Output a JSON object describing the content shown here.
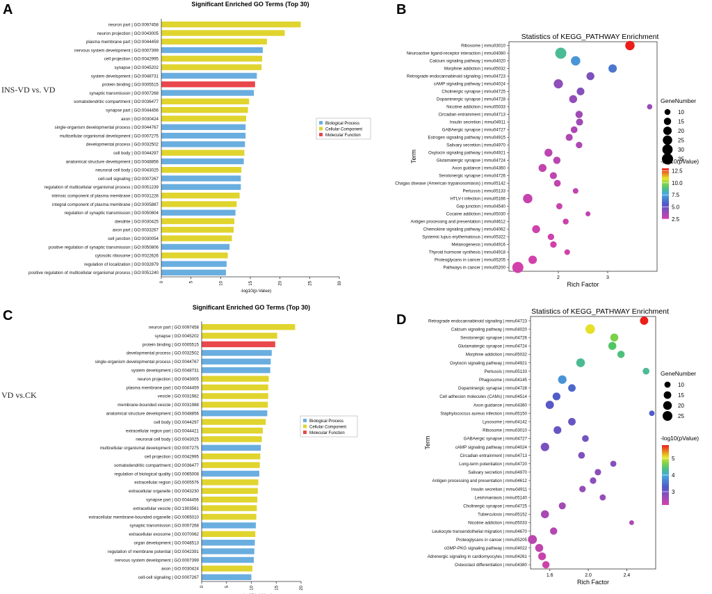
{
  "panels": {
    "A": {
      "letter": "A",
      "side_label": "INS-VD vs. VD"
    },
    "B": {
      "letter": "B"
    },
    "C": {
      "letter": "C",
      "side_label": "VD vs.CK"
    },
    "D": {
      "letter": "D"
    }
  },
  "colors": {
    "bp": "#6aaee0",
    "cc": "#e0d42e",
    "mf": "#e8474c"
  },
  "chart_data": [
    {
      "id": "A",
      "type": "bar",
      "orientation": "horizontal",
      "title": "Significant Enriched GO Terms (Top 30)",
      "xlabel": "-log10(p-Value)",
      "xlim": [
        0,
        30
      ],
      "xticks": [
        0,
        5,
        10,
        15,
        20,
        25,
        30
      ],
      "legend": {
        "position": "right",
        "entries": [
          {
            "label": "Biological Process",
            "key": "bp"
          },
          {
            "label": "Cellular Component",
            "key": "cc"
          },
          {
            "label": "Molecular Function",
            "key": "mf"
          }
        ]
      },
      "bars": [
        {
          "label": "neuron part | GO:0097458",
          "value": 23.5,
          "cat": "cc"
        },
        {
          "label": "neuron projection | GO:0043005",
          "value": 20.8,
          "cat": "cc"
        },
        {
          "label": "plasma membrane part | GO:0044459",
          "value": 17.8,
          "cat": "cc"
        },
        {
          "label": "nervous system development | GO:0007399",
          "value": 17.1,
          "cat": "bp"
        },
        {
          "label": "cell projection | GO:0042995",
          "value": 17.0,
          "cat": "cc"
        },
        {
          "label": "synapse | GO:0045202",
          "value": 16.9,
          "cat": "cc"
        },
        {
          "label": "system development | GO:0048731",
          "value": 16.1,
          "cat": "bp"
        },
        {
          "label": "protein binding | GO:0005515",
          "value": 15.8,
          "cat": "mf"
        },
        {
          "label": "synaptic transmission | GO:0007268",
          "value": 15.6,
          "cat": "bp"
        },
        {
          "label": "somatodendritic compartment | GO:0036477",
          "value": 14.8,
          "cat": "cc"
        },
        {
          "label": "synapse part | GO:0044456",
          "value": 14.6,
          "cat": "cc"
        },
        {
          "label": "axon | GO:0030424",
          "value": 14.3,
          "cat": "cc"
        },
        {
          "label": "single-organism developmental process | GO:0044767",
          "value": 14.2,
          "cat": "bp"
        },
        {
          "label": "multicellular organismal development | GO:0007275",
          "value": 14.2,
          "cat": "bp"
        },
        {
          "label": "developmental process | GO:0032502",
          "value": 14.1,
          "cat": "bp"
        },
        {
          "label": "cell body | GO:0044297",
          "value": 14.0,
          "cat": "cc"
        },
        {
          "label": "anatomical structure development | GO:0048856",
          "value": 13.9,
          "cat": "bp"
        },
        {
          "label": "neuronal cell body | GO:0043025",
          "value": 13.5,
          "cat": "cc"
        },
        {
          "label": "cell-cell signaling | GO:0007267",
          "value": 13.4,
          "cat": "bp"
        },
        {
          "label": "regulation of multicellular organismal process | GO:0051239",
          "value": 13.4,
          "cat": "bp"
        },
        {
          "label": "intrinsic component of plasma membrane | GO:0031226",
          "value": 13.2,
          "cat": "cc"
        },
        {
          "label": "integral component of plasma membrane | GO:0005887",
          "value": 12.7,
          "cat": "cc"
        },
        {
          "label": "regulation of synaptic transmission | GO:0050804",
          "value": 12.5,
          "cat": "bp"
        },
        {
          "label": "dendrite | GO:0030425",
          "value": 12.3,
          "cat": "cc"
        },
        {
          "label": "axon part | GO:0033267",
          "value": 12.2,
          "cat": "cc"
        },
        {
          "label": "cell junction | GO:0030054",
          "value": 11.9,
          "cat": "cc"
        },
        {
          "label": "positive regulation of synaptic transmission | GO:0050806",
          "value": 11.5,
          "cat": "bp"
        },
        {
          "label": "cytosolic ribosome | GO:0022626",
          "value": 11.2,
          "cat": "cc"
        },
        {
          "label": "regulation of localization | GO:0032879",
          "value": 11.0,
          "cat": "bp"
        },
        {
          "label": "positive regulation of multicellular organismal process | GO:0051240",
          "value": 10.9,
          "cat": "bp"
        }
      ]
    },
    {
      "id": "B",
      "type": "scatter",
      "title": "Statistics of KEGG_PATHWAY Enrichment",
      "xlabel": "Rich Factor",
      "ylabel": "Term",
      "xlim": [
        1.0,
        4.0
      ],
      "xticks": [
        2,
        3
      ],
      "size_legend": {
        "title": "GeneNumber",
        "values": [
          10,
          15,
          20,
          25,
          30,
          35
        ]
      },
      "color_legend": {
        "title": "-log10(pValue)",
        "min": 2.5,
        "max": 13,
        "ticks": [
          "12.5",
          "10.0",
          "7.5",
          "5.0",
          "2.5"
        ],
        "tick_values": [
          12.5,
          10,
          7.5,
          5,
          2.5
        ]
      },
      "points": [
        {
          "term": "Ribosome | mmu03010",
          "x": 3.45,
          "genes": 25,
          "p": 13.0
        },
        {
          "term": "Neuroactive ligand-receptor interaction | mmu04080",
          "x": 2.05,
          "genes": 35,
          "p": 8.6
        },
        {
          "term": "Calcium signaling pathway | mmu04020",
          "x": 2.35,
          "genes": 25,
          "p": 7.2
        },
        {
          "term": "Morphine addiction | mmu05032",
          "x": 3.1,
          "genes": 20,
          "p": 6.4
        },
        {
          "term": "Retrograde endocannabinoid signaling | mmu04723",
          "x": 2.65,
          "genes": 18,
          "p": 4.6
        },
        {
          "term": "cAMP signaling pathway | mmu04024",
          "x": 2.0,
          "genes": 24,
          "p": 4.1
        },
        {
          "term": "Cholinergic synapse | mmu04725",
          "x": 2.45,
          "genes": 17,
          "p": 4.4
        },
        {
          "term": "Dopaminergic synapse | mmu04728",
          "x": 2.3,
          "genes": 18,
          "p": 4.0
        },
        {
          "term": "Nicotine addiction | mmu05033",
          "x": 3.85,
          "genes": 8,
          "p": 3.9
        },
        {
          "term": "Circadian entrainment | mmu04713",
          "x": 2.42,
          "genes": 15,
          "p": 3.7
        },
        {
          "term": "Insulin secretion | mmu04911",
          "x": 2.43,
          "genes": 14,
          "p": 3.7
        },
        {
          "term": "GABAergic synapse | mmu04727",
          "x": 2.32,
          "genes": 13,
          "p": 3.4
        },
        {
          "term": "Estrogen signaling pathway | mmu04915",
          "x": 2.22,
          "genes": 14,
          "p": 3.3
        },
        {
          "term": "Salivary secretion | mmu04970",
          "x": 2.42,
          "genes": 12,
          "p": 3.4
        },
        {
          "term": "Oxytocin signaling pathway | mmu04921",
          "x": 1.8,
          "genes": 18,
          "p": 3.0
        },
        {
          "term": "Glutamatergic synapse | mmu04724",
          "x": 1.97,
          "genes": 15,
          "p": 3.1
        },
        {
          "term": "Axon guidance | mmu04360",
          "x": 1.68,
          "genes": 18,
          "p": 2.9
        },
        {
          "term": "Serotonergic synapse | mmu04726",
          "x": 1.9,
          "genes": 14,
          "p": 2.9
        },
        {
          "term": "Chagas disease (American trypanosomiasis) | mmu05142",
          "x": 1.98,
          "genes": 13,
          "p": 2.9
        },
        {
          "term": "Pertussis | mmu05133",
          "x": 2.35,
          "genes": 9,
          "p": 2.9
        },
        {
          "term": "HTLV-I infection | mmu05166",
          "x": 1.38,
          "genes": 25,
          "p": 2.8
        },
        {
          "term": "Gap junction | mmu04540",
          "x": 2.02,
          "genes": 11,
          "p": 2.8
        },
        {
          "term": "Cocaine addiction | mmu05030",
          "x": 2.6,
          "genes": 7,
          "p": 2.9
        },
        {
          "term": "Antigen processing and presentation | mmu04612",
          "x": 2.15,
          "genes": 10,
          "p": 2.7
        },
        {
          "term": "Chemokine signaling pathway | mmu04062",
          "x": 1.55,
          "genes": 18,
          "p": 2.6
        },
        {
          "term": "Systemic lupus erythematosus | mmu05322",
          "x": 1.85,
          "genes": 12,
          "p": 2.6
        },
        {
          "term": "Melanogenesis | mmu04916",
          "x": 1.9,
          "genes": 12,
          "p": 2.5
        },
        {
          "term": "Thyroid hormone synthesis | mmu04918",
          "x": 2.18,
          "genes": 9,
          "p": 2.5
        },
        {
          "term": "Proteoglycans in cancer | mmu05205",
          "x": 1.48,
          "genes": 20,
          "p": 2.5
        },
        {
          "term": "Pathways in cancer | mmu05200",
          "x": 1.18,
          "genes": 35,
          "p": 2.4
        }
      ]
    },
    {
      "id": "C",
      "type": "bar",
      "orientation": "horizontal",
      "title": "Significant Enriched GO Terms (Top 30)",
      "xlabel": "-log10(p-Value)",
      "xlim": [
        0,
        20
      ],
      "xticks": [
        0,
        5,
        10,
        15,
        20
      ],
      "legend": {
        "position": "right",
        "entries": [
          {
            "label": "Biological Process",
            "key": "bp"
          },
          {
            "label": "Cellular Component",
            "key": "cc"
          },
          {
            "label": "Molecular Function",
            "key": "mf"
          }
        ]
      },
      "bars": [
        {
          "label": "neuron part | GO:0097458",
          "value": 18.8,
          "cat": "cc"
        },
        {
          "label": "synapse | GO:0045202",
          "value": 15.2,
          "cat": "cc"
        },
        {
          "label": "protein binding | GO:0005515",
          "value": 14.8,
          "cat": "mf"
        },
        {
          "label": "developmental process | GO:0032502",
          "value": 14.1,
          "cat": "bp"
        },
        {
          "label": "single-organism developmental process | GO:0044767",
          "value": 13.9,
          "cat": "bp"
        },
        {
          "label": "system development | GO:0048731",
          "value": 13.8,
          "cat": "bp"
        },
        {
          "label": "neuron projection | GO:0043005",
          "value": 13.5,
          "cat": "cc"
        },
        {
          "label": "plasma membrane part | GO:0044459",
          "value": 13.4,
          "cat": "cc"
        },
        {
          "label": "vesicle | GO:0031982",
          "value": 13.4,
          "cat": "cc"
        },
        {
          "label": "membrane-bounded vesicle | GO:0031988",
          "value": 13.3,
          "cat": "cc"
        },
        {
          "label": "anatomical structure development | GO:0048856",
          "value": 13.2,
          "cat": "bp"
        },
        {
          "label": "cell body | GO:0044297",
          "value": 12.9,
          "cat": "cc"
        },
        {
          "label": "extracellular region part | GO:0044421",
          "value": 12.3,
          "cat": "cc"
        },
        {
          "label": "neuronal cell body | GO:0043025",
          "value": 12.1,
          "cat": "cc"
        },
        {
          "label": "multicellular organismal development | GO:0007275",
          "value": 11.9,
          "cat": "bp"
        },
        {
          "label": "cell projection | GO:0042995",
          "value": 11.8,
          "cat": "cc"
        },
        {
          "label": "somatodendritic compartment | GO:0036477",
          "value": 11.7,
          "cat": "cc"
        },
        {
          "label": "regulation of biological quality | GO:0065008",
          "value": 11.6,
          "cat": "bp"
        },
        {
          "label": "extracellular region | GO:0005576",
          "value": 11.4,
          "cat": "cc"
        },
        {
          "label": "extracellular organelle | GO:0043230",
          "value": 11.3,
          "cat": "cc"
        },
        {
          "label": "synapse part | GO:0044456",
          "value": 11.2,
          "cat": "cc"
        },
        {
          "label": "extracellular vesicle | GO:1903561",
          "value": 11.1,
          "cat": "cc"
        },
        {
          "label": "extracellular membrane-bounded organelle | GO:0065010",
          "value": 11.0,
          "cat": "cc"
        },
        {
          "label": "synaptic transmission | GO:0007268",
          "value": 10.9,
          "cat": "bp"
        },
        {
          "label": "extracellular exosome | GO:0070062",
          "value": 10.8,
          "cat": "cc"
        },
        {
          "label": "organ development | GO:0048513",
          "value": 10.7,
          "cat": "bp"
        },
        {
          "label": "regulation of membrane potential | GO:0042391",
          "value": 10.6,
          "cat": "bp"
        },
        {
          "label": "nervous system development | GO:0007399",
          "value": 10.5,
          "cat": "bp"
        },
        {
          "label": "axon | GO:0030424",
          "value": 10.2,
          "cat": "cc"
        },
        {
          "label": "cell-cell signaling | GO:0007267",
          "value": 10.0,
          "cat": "bp"
        }
      ]
    },
    {
      "id": "D",
      "type": "scatter",
      "title": "Statistics of KEGG_PATHWAY Enrichment",
      "xlabel": "Rich Factor",
      "ylabel": "Term",
      "xlim": [
        1.4,
        2.7
      ],
      "xticks": [
        1.6,
        2.0,
        2.4
      ],
      "size_legend": {
        "title": "GeneNumber",
        "values": [
          10,
          15,
          20,
          25
        ]
      },
      "color_legend": {
        "title": "-log10(pValue)",
        "min": 2.2,
        "max": 5.8,
        "ticks": [
          "5",
          "4",
          "3"
        ],
        "tick_values": [
          5,
          4,
          3
        ]
      },
      "points": [
        {
          "term": "Retrograde endocannabinoid signaling | mmu04723",
          "x": 2.58,
          "genes": 18,
          "p": 5.8
        },
        {
          "term": "Calcium signaling pathway | mmu04020",
          "x": 2.02,
          "genes": 24,
          "p": 5.1
        },
        {
          "term": "Serotonergic synapse | mmu04726",
          "x": 2.27,
          "genes": 17,
          "p": 4.7
        },
        {
          "term": "Glutamatergic synapse | mmu04724",
          "x": 2.25,
          "genes": 17,
          "p": 4.5
        },
        {
          "term": "Morphine addiction | mmu05032",
          "x": 2.34,
          "genes": 14,
          "p": 4.4
        },
        {
          "term": "Oxytocin signaling pathway | mmu04921",
          "x": 1.92,
          "genes": 20,
          "p": 4.3
        },
        {
          "term": "Pertussis | mmu05133",
          "x": 2.6,
          "genes": 12,
          "p": 4.3
        },
        {
          "term": "Phagosome | mmu04145",
          "x": 1.73,
          "genes": 19,
          "p": 3.8
        },
        {
          "term": "Dopaminergic synapse | mmu04728",
          "x": 1.83,
          "genes": 15,
          "p": 3.4
        },
        {
          "term": "Cell adhesion molecules (CAMs) | mmu04514",
          "x": 1.67,
          "genes": 16,
          "p": 3.3
        },
        {
          "term": "Axon guidance | mmu04360",
          "x": 1.6,
          "genes": 18,
          "p": 3.2
        },
        {
          "term": "Staphylococcus aureus infection | mmu05150",
          "x": 2.66,
          "genes": 8,
          "p": 3.3
        },
        {
          "term": "Lysosome | mmu04142",
          "x": 1.83,
          "genes": 15,
          "p": 3.1
        },
        {
          "term": "Ribosome | mmu03010",
          "x": 1.68,
          "genes": 16,
          "p": 3.1
        },
        {
          "term": "GABAergic synapse | mmu04727",
          "x": 1.97,
          "genes": 12,
          "p": 3.0
        },
        {
          "term": "cAMP signaling pathway | mmu04024",
          "x": 1.55,
          "genes": 19,
          "p": 2.95
        },
        {
          "term": "Circadian entrainment | mmu04713",
          "x": 1.93,
          "genes": 12,
          "p": 2.9
        },
        {
          "term": "Long-term potentiation | mmu04720",
          "x": 2.26,
          "genes": 10,
          "p": 2.85
        },
        {
          "term": "Salivary secretion | mmu04970",
          "x": 2.1,
          "genes": 11,
          "p": 2.8
        },
        {
          "term": "Antigen processing and presentation | mmu04612",
          "x": 2.05,
          "genes": 11,
          "p": 2.8
        },
        {
          "term": "Insulin secretion | mmu04911",
          "x": 1.94,
          "genes": 11,
          "p": 2.7
        },
        {
          "term": "Leishmaniasis | mmu05140",
          "x": 2.15,
          "genes": 10,
          "p": 2.7
        },
        {
          "term": "Cholinergic synapse | mmu04725",
          "x": 1.73,
          "genes": 13,
          "p": 2.6
        },
        {
          "term": "Tuberculosis | mmu05152",
          "x": 1.55,
          "genes": 17,
          "p": 2.55
        },
        {
          "term": "Nicotine addiction | mmu05033",
          "x": 2.45,
          "genes": 6,
          "p": 2.5
        },
        {
          "term": "Leukocyte transendothelial migration | mmu04670",
          "x": 1.64,
          "genes": 14,
          "p": 2.45
        },
        {
          "term": "Proteoglycans in cancer | mmu05205",
          "x": 1.42,
          "genes": 21,
          "p": 2.4
        },
        {
          "term": "cGMP-PKG signaling pathway | mmu04022",
          "x": 1.49,
          "genes": 17,
          "p": 2.35
        },
        {
          "term": "Adrenergic signaling in cardiomyocytes | mmu04261",
          "x": 1.52,
          "genes": 16,
          "p": 2.3
        },
        {
          "term": "Osteoclast differentiation | mmu04380",
          "x": 1.56,
          "genes": 14,
          "p": 2.25
        }
      ]
    }
  ]
}
